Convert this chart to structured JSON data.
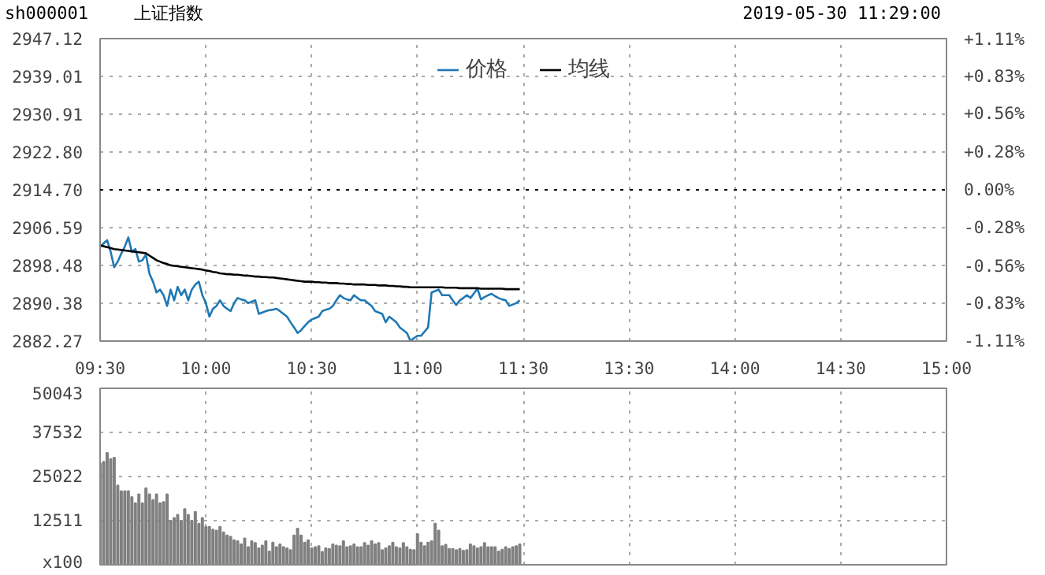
{
  "chart_data": [
    {
      "type": "line",
      "title": "sh000001",
      "subtitle": "上证指数",
      "annotations": [
        "2019-05-30 11:29:00"
      ],
      "legend": "top",
      "grid": true,
      "marker": "none",
      "line_style": "solid",
      "categories": [
        "09:30",
        null,
        null,
        null,
        null,
        null,
        null,
        null,
        null,
        null,
        null,
        null,
        null,
        null,
        null,
        null,
        null,
        null,
        null,
        null,
        null,
        null,
        null,
        null,
        null,
        null,
        null,
        null,
        null,
        null,
        "10:00",
        null,
        null,
        null,
        null,
        null,
        null,
        null,
        null,
        null,
        null,
        null,
        null,
        null,
        null,
        null,
        null,
        null,
        null,
        null,
        null,
        null,
        null,
        null,
        null,
        null,
        null,
        null,
        null,
        null,
        "10:30",
        null,
        null,
        null,
        null,
        null,
        null,
        null,
        null,
        null,
        null,
        null,
        null,
        null,
        null,
        null,
        null,
        null,
        null,
        null,
        null,
        null,
        null,
        null,
        null,
        null,
        null,
        null,
        null,
        null,
        "11:00",
        null,
        null,
        null,
        null,
        null,
        null,
        null,
        null,
        null,
        null,
        null,
        null,
        null,
        null,
        null,
        null,
        null,
        null,
        null,
        null,
        null,
        null,
        null,
        null,
        null,
        null,
        null,
        null,
        null,
        "11:30",
        null,
        null,
        null,
        null,
        null,
        null,
        null,
        null,
        null,
        null,
        null,
        null,
        null,
        null,
        null,
        null,
        null,
        null,
        null,
        null,
        null,
        null,
        null,
        null,
        null,
        null,
        null,
        null,
        null,
        "13:30",
        null,
        null,
        null,
        null,
        null,
        null,
        null,
        null,
        null,
        null,
        null,
        null,
        null,
        null,
        null,
        null,
        null,
        null,
        null,
        null,
        null,
        null,
        null,
        null,
        null,
        null,
        null,
        null,
        null,
        "14:00",
        null,
        null,
        null,
        null,
        null,
        null,
        null,
        null,
        null,
        null,
        null,
        null,
        null,
        null,
        null,
        null,
        null,
        null,
        null,
        null,
        null,
        null,
        null,
        null,
        null,
        null,
        null,
        null,
        null,
        "14:30",
        null,
        null,
        null,
        null,
        null,
        null,
        null,
        null,
        null,
        null,
        null,
        null,
        null,
        null,
        null,
        null,
        null,
        null,
        null,
        null,
        null,
        null,
        null,
        null,
        null,
        null,
        null,
        null,
        null,
        "15:00"
      ],
      "ylim": [
        2882.27,
        2947.12
      ],
      "yticks": [
        2882.27,
        2890.38,
        2898.48,
        2906.59,
        {
          "value": 2914.7,
          "label": "2914.70"
        },
        {
          "value": 2922.8,
          "label": "2922.80"
        },
        2930.91,
        2939.01,
        2947.12
      ],
      "y2lim": [
        -1.11,
        1.11
      ],
      "y2ticks": [
        {
          "value": -1.11,
          "label": "-1.11%"
        },
        {
          "value": -0.83,
          "label": "-0.83%"
        },
        {
          "value": -0.56,
          "label": "-0.56%"
        },
        {
          "value": -0.28,
          "label": "-0.28%"
        },
        {
          "value": 0,
          "label": "0.00%"
        },
        {
          "value": 0.28,
          "label": "+0.28%"
        },
        {
          "value": 0.56,
          "label": "+0.56%"
        },
        {
          "value": 0.83,
          "label": "+0.83%"
        },
        {
          "value": 1.11,
          "label": "+1.11%"
        }
      ],
      "ref_lines": [
        {
          "axis": "y",
          "value": 2914.7,
          "label": null,
          "color": "#000000",
          "line_style": "dotted"
        }
      ],
      "series": [
        {
          "name": "价格",
          "color": "#1f78b4",
          "values": [
            2902.5,
            2903.2,
            2903.9,
            2901.4,
            2898.1,
            2899.3,
            2901.0,
            2902.5,
            2904.5,
            2901.4,
            2902.0,
            2899.3,
            2899.6,
            2900.8,
            2896.7,
            2895.0,
            2892.7,
            2893.3,
            2892.1,
            2889.8,
            2893.3,
            2891.0,
            2893.9,
            2892.1,
            2893.3,
            2891.0,
            2893.3,
            2894.4,
            2895.0,
            2892.1,
            2890.4,
            2887.5,
            2889.2,
            2889.8,
            2891.0,
            2889.8,
            2889.2,
            2888.7,
            2890.4,
            2891.5,
            2891.2,
            2891.0,
            2890.4,
            2890.7,
            2891.0,
            2888.1,
            2888.4,
            2888.7,
            2888.9,
            2889.0,
            2889.2,
            2888.7,
            2888.1,
            2887.5,
            2886.3,
            2885.2,
            2884.0,
            2884.6,
            2885.5,
            2886.3,
            2886.9,
            2887.2,
            2887.5,
            2888.7,
            2889.0,
            2889.2,
            2889.8,
            2891.0,
            2892.1,
            2891.5,
            2891.2,
            2891.0,
            2892.1,
            2891.5,
            2891.0,
            2891.0,
            2890.4,
            2889.8,
            2888.7,
            2888.4,
            2888.1,
            2886.3,
            2887.5,
            2886.9,
            2886.3,
            2885.2,
            2884.6,
            2884.0,
            2882.3,
            2882.9,
            2883.4,
            2883.4,
            2884.3,
            2885.2,
            2892.7,
            2893.0,
            2893.3,
            2892.1,
            2892.1,
            2892.1,
            2891.0,
            2890.0,
            2891.0,
            2891.5,
            2892.1,
            2891.5,
            2892.5,
            2893.5,
            2891.2,
            2891.7,
            2892.1,
            2892.4,
            2891.9,
            2891.5,
            2891.2,
            2891.0,
            2889.8,
            2890.1,
            2890.4,
            2891.0,
            null,
            null,
            null,
            null,
            null,
            null,
            null,
            null,
            null,
            null,
            null,
            null,
            null,
            null,
            null,
            null,
            null,
            null,
            null,
            null,
            null,
            null,
            null,
            null,
            null,
            null,
            null,
            null,
            null,
            null,
            null,
            null,
            null,
            null,
            null,
            null,
            null,
            null,
            null,
            null,
            null,
            null,
            null,
            null,
            null,
            null,
            null,
            null,
            null,
            null,
            null,
            null,
            null,
            null,
            null,
            null,
            null,
            null,
            null,
            null,
            null,
            null,
            null,
            null,
            null,
            null,
            null,
            null,
            null,
            null,
            null,
            null,
            null,
            null,
            null,
            null,
            null,
            null,
            null,
            null,
            null,
            null,
            null,
            null,
            null,
            null,
            null,
            null,
            null,
            null,
            null,
            null,
            null,
            null,
            null,
            null,
            null,
            null,
            null,
            null,
            null,
            null,
            null,
            null,
            null,
            null,
            null,
            null,
            null,
            null,
            null,
            null,
            null,
            null,
            null,
            null,
            null,
            null,
            null,
            null,
            null
          ]
        },
        {
          "name": "均线",
          "color": "#000000",
          "values": [
            2902.8,
            2902.6,
            2902.4,
            2902.2,
            2902.0,
            2901.9,
            2901.8,
            2901.7,
            2901.6,
            2901.5,
            2901.4,
            2901.3,
            2901.2,
            2901.1,
            2900.6,
            2900.1,
            2899.6,
            2899.3,
            2899.0,
            2898.8,
            2898.5,
            2898.4,
            2898.3,
            2898.2,
            2898.1,
            2898.0,
            2897.9,
            2897.8,
            2897.7,
            2897.6,
            2897.4,
            2897.3,
            2897.1,
            2897.0,
            2896.8,
            2896.7,
            2896.6,
            2896.6,
            2896.5,
            2896.5,
            2896.4,
            2896.3,
            2896.3,
            2896.2,
            2896.1,
            2896.1,
            2896.0,
            2896.0,
            2895.9,
            2895.9,
            2895.8,
            2895.7,
            2895.6,
            2895.5,
            2895.4,
            2895.3,
            2895.2,
            2895.1,
            2895.0,
            2895.0,
            2895.0,
            2894.9,
            2894.9,
            2894.8,
            2894.8,
            2894.7,
            2894.7,
            2894.7,
            2894.6,
            2894.6,
            2894.5,
            2894.5,
            2894.4,
            2894.4,
            2894.4,
            2894.4,
            2894.3,
            2894.3,
            2894.3,
            2894.2,
            2894.2,
            2894.2,
            2894.1,
            2894.1,
            2894.0,
            2894.0,
            2893.9,
            2893.9,
            2893.8,
            2893.8,
            2893.8,
            2893.8,
            2893.8,
            2893.8,
            2893.8,
            2893.8,
            2893.8,
            2893.8,
            2893.7,
            2893.7,
            2893.7,
            2893.7,
            2893.6,
            2893.6,
            2893.6,
            2893.6,
            2893.6,
            2893.6,
            2893.5,
            2893.5,
            2893.5,
            2893.5,
            2893.5,
            2893.5,
            2893.5,
            2893.4,
            2893.4,
            2893.4,
            2893.4,
            2893.4,
            null,
            null,
            null,
            null,
            null,
            null,
            null,
            null,
            null,
            null,
            null,
            null,
            null,
            null,
            null,
            null,
            null,
            null,
            null,
            null,
            null,
            null,
            null,
            null,
            null,
            null,
            null,
            null,
            null,
            null,
            null,
            null,
            null,
            null,
            null,
            null,
            null,
            null,
            null,
            null,
            null,
            null,
            null,
            null,
            null,
            null,
            null,
            null,
            null,
            null,
            null,
            null,
            null,
            null,
            null,
            null,
            null,
            null,
            null,
            null,
            null,
            null,
            null,
            null,
            null,
            null,
            null,
            null,
            null,
            null,
            null,
            null,
            null,
            null,
            null,
            null,
            null,
            null,
            null,
            null,
            null,
            null,
            null,
            null,
            null,
            null,
            null,
            null,
            null,
            null,
            null,
            null,
            null,
            null,
            null,
            null,
            null,
            null,
            null,
            null,
            null,
            null,
            null,
            null,
            null,
            null,
            null,
            null,
            null,
            null,
            null,
            null,
            null,
            null,
            null,
            null,
            null,
            null,
            null,
            null,
            null
          ]
        }
      ]
    },
    {
      "type": "bar",
      "color": "#808080",
      "grid": true,
      "categories": [
        null,
        null,
        null,
        null,
        null,
        null,
        null,
        null,
        null,
        null,
        null,
        null,
        null,
        null,
        null,
        null,
        null,
        null,
        null,
        null,
        null,
        null,
        null,
        null,
        null,
        null,
        null,
        null,
        null,
        null,
        null,
        null,
        null,
        null,
        null,
        null,
        null,
        null,
        null,
        null,
        null,
        null,
        null,
        null,
        null,
        null,
        null,
        null,
        null,
        null,
        null,
        null,
        null,
        null,
        null,
        null,
        null,
        null,
        null,
        null,
        null,
        null,
        null,
        null,
        null,
        null,
        null,
        null,
        null,
        null,
        null,
        null,
        null,
        null,
        null,
        null,
        null,
        null,
        null,
        null,
        null,
        null,
        null,
        null,
        null,
        null,
        null,
        null,
        null,
        null,
        null,
        null,
        null,
        null,
        null,
        null,
        null,
        null,
        null,
        null,
        null,
        null,
        null,
        null,
        null,
        null,
        null,
        null,
        null,
        null,
        null,
        null,
        null,
        null,
        null,
        null,
        null,
        null,
        null,
        null,
        null,
        null,
        null,
        null,
        null,
        null,
        null,
        null,
        null,
        null,
        null,
        null,
        null,
        null,
        null,
        null,
        null,
        null,
        null,
        null,
        null,
        null,
        null,
        null,
        null,
        null,
        null,
        null,
        null,
        null,
        null,
        null,
        null,
        null,
        null,
        null,
        null,
        null,
        null,
        null,
        null,
        null,
        null,
        null,
        null,
        null,
        null,
        null,
        null,
        null,
        null,
        null,
        null,
        null,
        null,
        null,
        null,
        null,
        null,
        null,
        null,
        null,
        null,
        null,
        null,
        null,
        null,
        null,
        null,
        null,
        null,
        null,
        null,
        null,
        null,
        null,
        null,
        null,
        null,
        null,
        null,
        null,
        null,
        null,
        null,
        null,
        null,
        null,
        null,
        null,
        null,
        null,
        null,
        null,
        null,
        null,
        null,
        null,
        null,
        null,
        null,
        null,
        null,
        null,
        null,
        null,
        null,
        null,
        null,
        null,
        null,
        null,
        null,
        null,
        null,
        null,
        null,
        null,
        null,
        null,
        null
      ],
      "ylim": [
        0,
        50043
      ],
      "yticks": [
        {
          "value": 0,
          "label": "x100"
        },
        12511,
        25022,
        37532,
        50043
      ],
      "values": [
        28700,
        29200,
        31700,
        30000,
        30400,
        22500,
        20900,
        20900,
        20900,
        19200,
        17500,
        20000,
        17500,
        21700,
        20000,
        18400,
        20000,
        17500,
        17800,
        20000,
        12500,
        13300,
        14200,
        12500,
        15800,
        14200,
        12500,
        15000,
        11700,
        13300,
        10800,
        10800,
        10000,
        9700,
        10800,
        9200,
        8300,
        8000,
        7000,
        6700,
        5800,
        7500,
        5000,
        6700,
        6200,
        4700,
        5500,
        6700,
        3800,
        6300,
        5000,
        5800,
        5000,
        4700,
        4200,
        8300,
        10300,
        8300,
        6300,
        7000,
        4700,
        5000,
        5300,
        3700,
        4700,
        4500,
        5800,
        5500,
        5300,
        6700,
        5000,
        5300,
        5800,
        5000,
        5000,
        6200,
        5500,
        6700,
        5800,
        6200,
        4200,
        4700,
        5300,
        6300,
        5000,
        4700,
        6200,
        5000,
        4300,
        4200,
        8700,
        6300,
        5300,
        6300,
        6700,
        11700,
        9700,
        5300,
        5700,
        4500,
        4500,
        4200,
        4500,
        4000,
        4200,
        5800,
        5300,
        4700,
        5000,
        6200,
        5000,
        5000,
        5000,
        3800,
        4300,
        5000,
        4500,
        5000,
        5300,
        5800,
        null,
        null,
        null,
        null,
        null,
        null,
        null,
        null,
        null,
        null,
        null,
        null,
        null,
        null,
        null,
        null,
        null,
        null,
        null,
        null,
        null,
        null,
        null,
        null,
        null,
        null,
        null,
        null,
        null,
        null,
        null,
        null,
        null,
        null,
        null,
        null,
        null,
        null,
        null,
        null,
        null,
        null,
        null,
        null,
        null,
        null,
        null,
        null,
        null,
        null,
        null,
        null,
        null,
        null,
        null,
        null,
        null,
        null,
        null,
        null,
        null,
        null,
        null,
        null,
        null,
        null,
        null,
        null,
        null,
        null,
        null,
        null,
        null,
        null,
        null,
        null,
        null,
        null,
        null,
        null,
        null,
        null,
        null,
        null,
        null,
        null,
        null,
        null,
        null,
        null,
        null,
        null,
        null,
        null,
        null,
        null,
        null,
        null,
        null,
        null,
        null,
        null,
        null,
        null,
        null,
        null,
        null,
        null,
        null,
        null,
        null,
        null,
        null,
        null,
        null,
        null,
        null,
        null,
        null,
        null,
        null
      ]
    }
  ]
}
